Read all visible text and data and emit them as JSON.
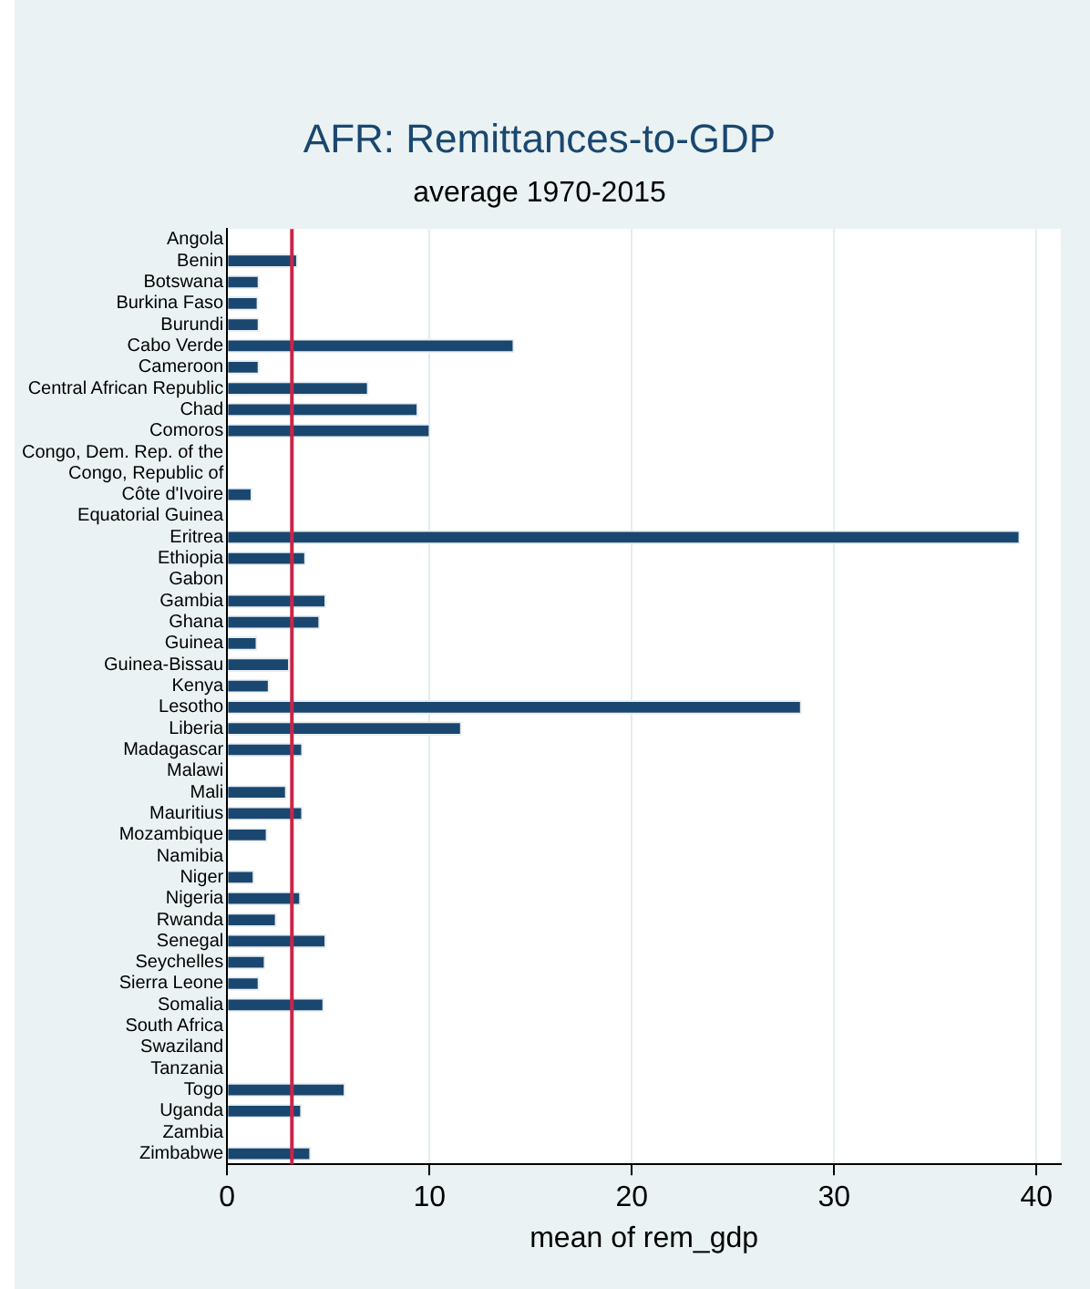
{
  "chart_data": {
    "type": "bar",
    "orientation": "horizontal",
    "title": "AFR: Remittances-to-GDP",
    "subtitle": "average 1970-2015",
    "xlabel": "mean of rem_gdp",
    "categories": [
      "Angola",
      "Benin",
      "Botswana",
      "Burkina Faso",
      "Burundi",
      "Cabo Verde",
      "Cameroon",
      "Central African Republic",
      "Chad",
      "Comoros",
      "Congo, Dem. Rep. of the",
      "Congo, Republic of",
      "Côte d'Ivoire",
      "Equatorial Guinea",
      "Eritrea",
      "Ethiopia",
      "Gabon",
      "Gambia",
      "Ghana",
      "Guinea",
      "Guinea-Bissau",
      "Kenya",
      "Lesotho",
      "Liberia",
      "Madagascar",
      "Malawi",
      "Mali",
      "Mauritius",
      "Mozambique",
      "Namibia",
      "Niger",
      "Nigeria",
      "Rwanda",
      "Senegal",
      "Seychelles",
      "Sierra Leone",
      "Somalia",
      "South Africa",
      "Swaziland",
      "Tanzania",
      "Togo",
      "Uganda",
      "Zambia",
      "Zimbabwe"
    ],
    "values": [
      null,
      3.5,
      1.6,
      1.55,
      1.6,
      14.2,
      1.6,
      7.0,
      9.45,
      10.05,
      null,
      null,
      1.25,
      null,
      39.2,
      3.9,
      null,
      4.9,
      4.6,
      1.5,
      3.1,
      2.1,
      28.4,
      11.6,
      3.75,
      null,
      2.95,
      3.75,
      2.0,
      null,
      1.35,
      3.65,
      2.45,
      4.9,
      1.9,
      1.6,
      4.8,
      null,
      null,
      null,
      5.85,
      3.7,
      null,
      4.15
    ],
    "color": "#1a476f",
    "xlim": [
      0,
      41.2
    ],
    "xticks": [
      0,
      10,
      20,
      30,
      40
    ],
    "grid": "x",
    "ref_lines": [
      {
        "axis": "x",
        "value": 3.2,
        "color": "#c8264a"
      }
    ]
  }
}
